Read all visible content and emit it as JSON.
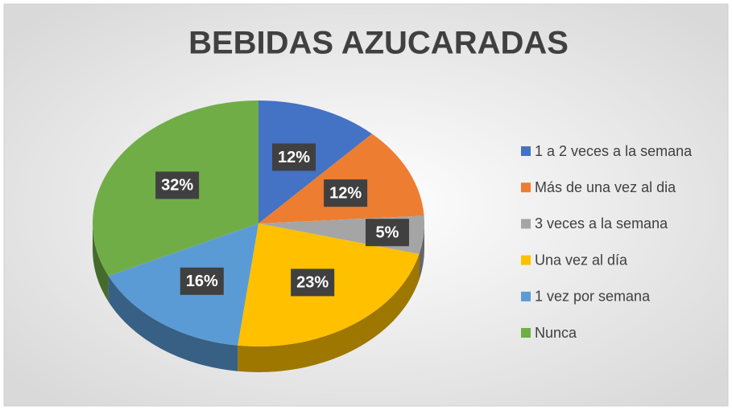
{
  "chart_data": {
    "type": "pie",
    "title": "BEBIDAS AZUCARADAS",
    "categories": [
      "1 a 2 veces a la semana",
      "Más de una vez al dia",
      "3 veces a la semana",
      "Una vez al día",
      "1 vez por semana",
      "Nunca"
    ],
    "values": [
      12,
      12,
      5,
      23,
      16,
      32
    ],
    "value_labels": [
      "12%",
      "12%",
      "5%",
      "23%",
      "16%",
      "32%"
    ],
    "colors": [
      "#4472c4",
      "#ed7d31",
      "#a5a5a5",
      "#ffc000",
      "#5b9bd5",
      "#70ad47"
    ],
    "legend": "right"
  }
}
